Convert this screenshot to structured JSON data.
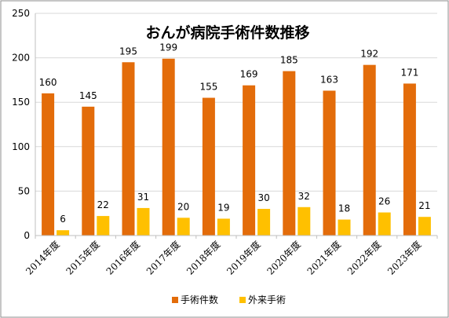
{
  "chart_data": {
    "type": "bar",
    "title": "おんが病院手術件数推移",
    "categories": [
      "2014年度",
      "2015年度",
      "2016年度",
      "2017年度",
      "2018年度",
      "2019年度",
      "2020年度",
      "2021年度",
      "2022年度",
      "2023年度"
    ],
    "series": [
      {
        "name": "手術件数",
        "values": [
          160,
          145,
          195,
          199,
          155,
          169,
          185,
          163,
          192,
          171
        ],
        "color": "#E36C0A"
      },
      {
        "name": "外来手術",
        "values": [
          6,
          22,
          31,
          20,
          19,
          30,
          32,
          18,
          26,
          21
        ],
        "color": "#FFC000"
      }
    ],
    "ylim": [
      0,
      250
    ],
    "yticks": [
      0,
      50,
      100,
      150,
      200,
      250
    ],
    "grid": true,
    "legend": "bottom"
  }
}
